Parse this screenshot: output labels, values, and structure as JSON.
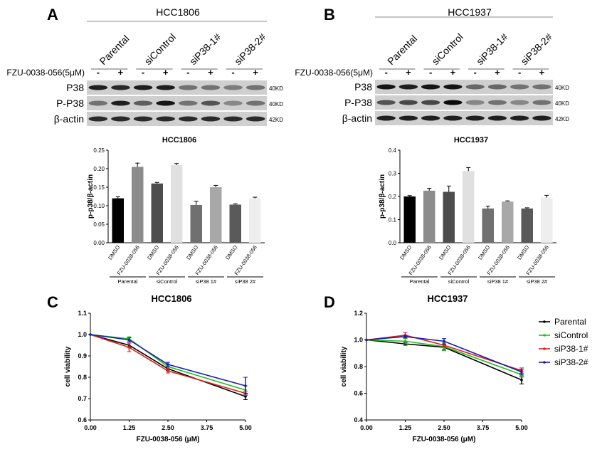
{
  "panels": {
    "A": {
      "letter": "A",
      "cell_line": "HCC1806",
      "lane_groups": [
        "Parental",
        "siControl",
        "siP38-1#",
        "siP38-2#"
      ],
      "treatment_label": "FZU-0038-056(5μM)",
      "treatment_signs": [
        "-",
        "+",
        "-",
        "+",
        "-",
        "+",
        "-",
        "+"
      ],
      "blot_rows": [
        {
          "name": "P38",
          "mw": "40KD"
        },
        {
          "name": "P-P38",
          "mw": "40KD"
        },
        {
          "name": "β-actin",
          "mw": "42KD"
        }
      ]
    },
    "B": {
      "letter": "B",
      "cell_line": "HCC1937",
      "lane_groups": [
        "Parental",
        "siControl",
        "siP38-1#",
        "siP38-2#"
      ],
      "treatment_label": "FZU-0038-056(5μM)",
      "treatment_signs": [
        "-",
        "+",
        "-",
        "+",
        "-",
        "+",
        "-",
        "+"
      ],
      "blot_rows": [
        {
          "name": "P38",
          "mw": "40KD"
        },
        {
          "name": "P-P38",
          "mw": "40KD"
        },
        {
          "name": "β-actin",
          "mw": "42KD"
        }
      ]
    },
    "C": {
      "letter": "C"
    },
    "D": {
      "letter": "D"
    }
  },
  "chart_data": [
    {
      "id": "A-bar",
      "type": "bar",
      "title": "HCC1806",
      "ylabel": "p-p38/β-actin",
      "ylim": [
        0,
        0.25
      ],
      "yticks": [
        "0.00",
        "0.05",
        "0.10",
        "0.15",
        "0.20",
        "0.25"
      ],
      "categories": [
        "DMSO",
        "FZU-0038-056",
        "DMSO",
        "FZU-0038-056",
        "DMSO",
        "FZU-0038-056",
        "DMSO",
        "FZU-0038-056"
      ],
      "values": [
        0.12,
        0.205,
        0.16,
        0.21,
        0.102,
        0.15,
        0.103,
        0.12
      ],
      "errors": [
        0.004,
        0.01,
        0.003,
        0.004,
        0.01,
        0.005,
        0.002,
        0.003
      ],
      "colors": [
        "#000000",
        "#8c8c8c",
        "#4d4d4d",
        "#e0e0e0",
        "#707070",
        "#a8a8a8",
        "#5a5a5a",
        "#eeeeee"
      ],
      "groups": [
        "Parental",
        "siControl",
        "siP38 1#",
        "siP38 2#"
      ]
    },
    {
      "id": "B-bar",
      "type": "bar",
      "title": "HCC1937",
      "ylabel": "p-p38/β-actin",
      "ylim": [
        0,
        0.4
      ],
      "yticks": [
        "0.0",
        "0.1",
        "0.2",
        "0.3",
        "0.4"
      ],
      "categories": [
        "DMSO",
        "FZU-0038-056",
        "DMSO",
        "FZU-0038-056",
        "DMSO",
        "FZU-0038-056",
        "DMSO",
        "FZU-0038-056"
      ],
      "values": [
        0.2,
        0.225,
        0.22,
        0.31,
        0.148,
        0.178,
        0.148,
        0.195
      ],
      "errors": [
        0.004,
        0.01,
        0.025,
        0.015,
        0.01,
        0.003,
        0.003,
        0.01
      ],
      "colors": [
        "#000000",
        "#8c8c8c",
        "#4d4d4d",
        "#e0e0e0",
        "#707070",
        "#a8a8a8",
        "#5a5a5a",
        "#eeeeee"
      ],
      "groups": [
        "Parental",
        "siControl",
        "siP38 1#",
        "siP38 2#"
      ]
    },
    {
      "id": "C-line",
      "type": "line",
      "title": "HCC1806",
      "xlabel": "FZU-0038-056 (μM)",
      "ylabel": "cell viability",
      "x": [
        0,
        1.25,
        2.5,
        5.0
      ],
      "xticks": [
        "0.00",
        "1.25",
        "2.50",
        "3.75",
        "5.00"
      ],
      "xlim": [
        0,
        5
      ],
      "ylim": [
        0.6,
        1.1
      ],
      "yticks": [
        "0.6",
        "0.7",
        "0.8",
        "0.9",
        "1.0",
        "1.1"
      ],
      "series": [
        {
          "name": "Parental",
          "color": "#000000",
          "values": [
            1.0,
            0.95,
            0.84,
            0.71
          ],
          "errors": [
            0,
            0.01,
            0.01,
            0.015
          ]
        },
        {
          "name": "siControl",
          "color": "#1fbf1f",
          "values": [
            1.0,
            0.98,
            0.85,
            0.74
          ],
          "errors": [
            0,
            0.01,
            0.01,
            0.02
          ]
        },
        {
          "name": "siP38-1#",
          "color": "#e0201a",
          "values": [
            1.0,
            0.94,
            0.83,
            0.725
          ],
          "errors": [
            0,
            0.02,
            0.01,
            0.01
          ]
        },
        {
          "name": "siP38-2#",
          "color": "#1a1ab5",
          "values": [
            1.0,
            0.975,
            0.86,
            0.76
          ],
          "errors": [
            0,
            0.01,
            0.01,
            0.04
          ]
        }
      ]
    },
    {
      "id": "D-line",
      "type": "line",
      "title": "HCC1937",
      "xlabel": "FZU-0038-056 (μM)",
      "ylabel": "cell viability",
      "x": [
        0,
        1.25,
        2.5,
        5.0
      ],
      "xticks": [
        "0.00",
        "1.25",
        "2.50",
        "3.75",
        "5.00"
      ],
      "xlim": [
        0,
        5
      ],
      "ylim": [
        0.4,
        1.2
      ],
      "yticks": [
        "0.4",
        "0.6",
        "0.8",
        "1.0",
        "1.2"
      ],
      "series": [
        {
          "name": "Parental",
          "color": "#000000",
          "values": [
            1.0,
            0.97,
            0.945,
            0.7
          ],
          "errors": [
            0,
            0.01,
            0.02,
            0.03
          ]
        },
        {
          "name": "siControl",
          "color": "#1fbf1f",
          "values": [
            1.0,
            0.99,
            0.95,
            0.74
          ],
          "errors": [
            0,
            0.02,
            0.03,
            0.02
          ]
        },
        {
          "name": "siP38-1#",
          "color": "#e0201a",
          "values": [
            1.0,
            1.035,
            0.96,
            0.77
          ],
          "errors": [
            0,
            0.02,
            0.01,
            0.02
          ]
        },
        {
          "name": "siP38-2#",
          "color": "#1a1ab5",
          "values": [
            1.0,
            1.025,
            0.99,
            0.76
          ],
          "errors": [
            0,
            0.01,
            0.02,
            0.02
          ]
        }
      ],
      "legend": [
        "Parental",
        "siControl",
        "siP38-1#",
        "siP38-2#"
      ]
    }
  ]
}
